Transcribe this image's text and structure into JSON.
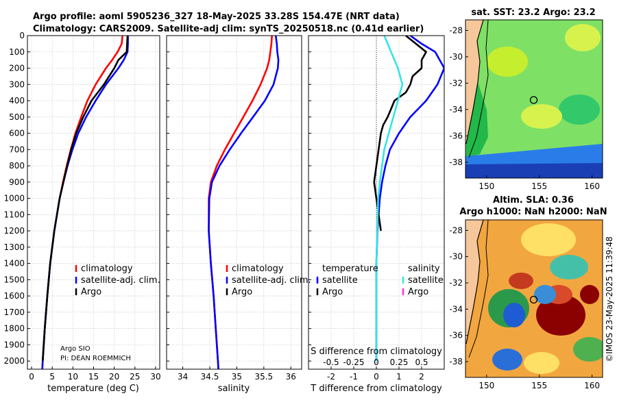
{
  "figure": {
    "title_line1": "Argo profile: aoml 5905236_327 18-May-2025 33.28S 154.47E (NRT data)",
    "title_line2": "Climatology: CARS2009. Satellite-adj clim: synTS_20250518.nc (0.41d earlier)",
    "credit": "©IMOS 23-May-2025 11:39:48",
    "argo_source": "Argo SIO",
    "argo_pi": "PI: DEAN ROEMMICH",
    "colors": {
      "climatology": "#ff0000",
      "satellite": "#0000ff",
      "argo": "#000000",
      "sat_salinity": "#33e5e5",
      "argo_salinity": "#ff33cc",
      "land": "#f6c79b"
    }
  },
  "chart_data": [
    {
      "type": "line",
      "xlabel": "temperature (deg C)",
      "ylabel": "",
      "xlim": [
        -1,
        31
      ],
      "ylim": [
        0,
        2050
      ],
      "x_ticks": [
        0,
        5,
        10,
        15,
        20,
        25,
        30
      ],
      "y_ticks": [
        0,
        100,
        200,
        300,
        400,
        500,
        600,
        700,
        800,
        900,
        1000,
        1100,
        1200,
        1300,
        1400,
        1500,
        1600,
        1700,
        1800,
        1900,
        2000
      ],
      "legend": [
        "climatology",
        "satellite-adj. clim.",
        "Argo"
      ],
      "series": [
        {
          "name": "climatology",
          "depth": [
            0,
            50,
            100,
            150,
            200,
            300,
            400,
            500,
            600,
            700,
            800,
            900,
            1000,
            1200,
            1400,
            1600,
            1800,
            2000,
            2050
          ],
          "values": [
            22.0,
            21.8,
            20.8,
            19.5,
            18.0,
            15.5,
            13.5,
            12.0,
            10.6,
            9.5,
            8.5,
            7.6,
            6.8,
            5.5,
            4.5,
            3.8,
            3.2,
            2.7,
            2.6
          ]
        },
        {
          "name": "satellite-adj. clim.",
          "depth": [
            0,
            50,
            100,
            150,
            200,
            300,
            400,
            500,
            600,
            700,
            800,
            900,
            1000,
            1200,
            1400,
            1600,
            1800,
            2000,
            2050
          ],
          "values": [
            23.3,
            23.3,
            23.2,
            22.3,
            21.0,
            18.0,
            15.5,
            13.2,
            11.3,
            9.9,
            8.7,
            7.7,
            6.8,
            5.5,
            4.5,
            3.8,
            3.2,
            2.7,
            2.6
          ]
        },
        {
          "name": "Argo",
          "depth": [
            0,
            100,
            150,
            200,
            300,
            400,
            500,
            600,
            700,
            800,
            900,
            1000,
            1200,
            1400,
            1600,
            1800,
            2000
          ],
          "values": [
            23.2,
            23.0,
            21.0,
            20.0,
            17.5,
            14.5,
            12.5,
            10.8,
            9.6,
            8.6,
            7.7,
            6.8,
            5.5,
            4.5,
            3.8,
            3.2,
            2.7
          ]
        }
      ]
    },
    {
      "type": "line",
      "xlabel": "salinity",
      "ylabel": "",
      "xlim": [
        33.7,
        36.2
      ],
      "ylim": [
        0,
        2050
      ],
      "x_ticks": [
        34,
        34.5,
        35,
        35.5,
        36
      ],
      "legend": [
        "climatology",
        "satellite-adj. clim.",
        "Argo"
      ],
      "series": [
        {
          "name": "climatology",
          "depth": [
            0,
            50,
            100,
            150,
            200,
            300,
            400,
            500,
            600,
            700,
            800,
            900,
            1000,
            1200,
            1400,
            1600,
            1800,
            2000,
            2050
          ],
          "values": [
            35.65,
            35.64,
            35.62,
            35.6,
            35.56,
            35.44,
            35.29,
            35.12,
            34.95,
            34.78,
            34.63,
            34.52,
            34.48,
            34.48,
            34.52,
            34.57,
            34.61,
            34.65,
            34.66
          ]
        },
        {
          "name": "satellite-adj. clim.",
          "depth": [
            0,
            50,
            100,
            150,
            200,
            300,
            400,
            500,
            600,
            700,
            800,
            900,
            1000,
            1200,
            1400,
            1600,
            1800,
            2000,
            2050
          ],
          "values": [
            35.72,
            35.74,
            35.75,
            35.77,
            35.76,
            35.68,
            35.52,
            35.3,
            35.08,
            34.87,
            34.68,
            34.54,
            34.49,
            34.48,
            34.52,
            34.57,
            34.61,
            34.65,
            34.66
          ]
        },
        {
          "name": "Argo",
          "depth": [],
          "values": []
        }
      ]
    },
    {
      "type": "line",
      "xlabel": "T difference from climatology",
      "top_xlabel": "S difference from climatology",
      "ylabel": "",
      "xlim": [
        -3,
        3
      ],
      "ylim": [
        0,
        2050
      ],
      "x_ticks": [
        -2,
        -1,
        0,
        1,
        2
      ],
      "top_ticks": [
        {
          "value": -2,
          "label": "-0.5"
        },
        {
          "value": -1,
          "label": "-0.25"
        },
        {
          "value": 0,
          "label": "0"
        },
        {
          "value": 1,
          "label": "0.25"
        },
        {
          "value": 2,
          "label": "0.5"
        }
      ],
      "legend_temperature_title": "temperature",
      "legend_salinity_title": "salinity",
      "legend_temperature": [
        "satellite",
        "Argo"
      ],
      "legend_salinity": [
        "satellite",
        "Argo"
      ],
      "series": [
        {
          "name": "T satellite",
          "depth": [
            0,
            50,
            100,
            150,
            200,
            300,
            400,
            500,
            600,
            700,
            800,
            900,
            1000,
            1200,
            1400,
            1600,
            1800,
            2000
          ],
          "values": [
            1.5,
            2.0,
            2.6,
            2.8,
            3.0,
            2.7,
            2.2,
            1.5,
            1.0,
            0.6,
            0.4,
            0.25,
            0.15,
            0.05,
            0.0,
            0.0,
            0.0,
            0.0
          ]
        },
        {
          "name": "T Argo",
          "depth": [
            0,
            100,
            150,
            200,
            250,
            300,
            350,
            400,
            450,
            500,
            550,
            600,
            700,
            800,
            900,
            1000,
            1100,
            1200
          ],
          "values": [
            1.3,
            2.2,
            2.0,
            2.0,
            1.6,
            1.5,
            1.3,
            0.8,
            0.65,
            0.5,
            0.3,
            0.2,
            0.1,
            0.0,
            -0.1,
            0.0,
            0.1,
            0.2
          ]
        },
        {
          "name": "S satellite",
          "depth": [
            0,
            100,
            200,
            300,
            400,
            500,
            600,
            700,
            800,
            900,
            1000,
            1200,
            1400,
            1600,
            1800,
            2000
          ],
          "values": [
            0.35,
            0.65,
            0.95,
            1.15,
            0.95,
            0.75,
            0.55,
            0.35,
            0.25,
            0.15,
            0.08,
            0.04,
            0.0,
            0.0,
            0.0,
            0.0
          ]
        },
        {
          "name": "S Argo",
          "depth": [],
          "values": []
        }
      ]
    },
    {
      "type": "heatmap",
      "title": "sat. SST: 23.2 Argo: 23.2",
      "x_ticks": [
        150,
        155,
        160
      ],
      "y_ticks": [
        -28,
        -30,
        -32,
        -34,
        -36,
        -38
      ],
      "xlim": [
        148,
        161
      ],
      "ylim": [
        -39.2,
        -27.2
      ],
      "argo_position": [
        154.47,
        -33.28
      ]
    },
    {
      "type": "heatmap",
      "title_line1": "Altim. SLA: 0.36",
      "title_line2": "Argo h1000: NaN h2000: NaN",
      "x_ticks": [
        150,
        155,
        160
      ],
      "y_ticks": [
        -28,
        -30,
        -32,
        -34,
        -36,
        -38
      ],
      "xlim": [
        148,
        161
      ],
      "ylim": [
        -39.2,
        -27.2
      ],
      "argo_position": [
        154.47,
        -33.28
      ]
    }
  ]
}
